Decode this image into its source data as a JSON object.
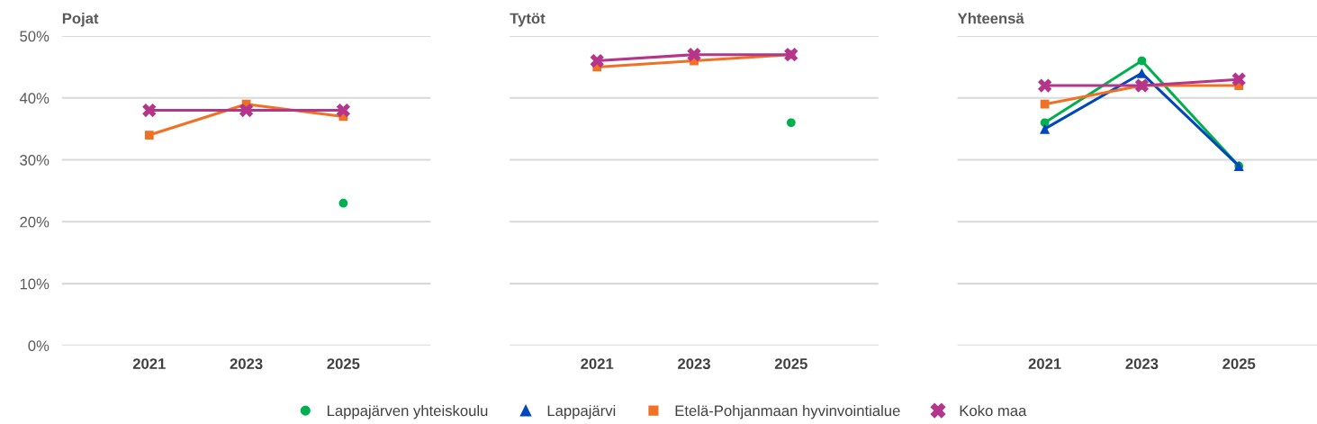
{
  "chart_data": [
    {
      "type": "line",
      "title": "Pojat",
      "categories": [
        "2021",
        "2023",
        "2025"
      ],
      "ylim": [
        0,
        50
      ],
      "yticks": [
        {
          "value": 0,
          "label": "0%"
        },
        {
          "value": 10,
          "label": "10%"
        },
        {
          "value": 20,
          "label": "20%"
        },
        {
          "value": 30,
          "label": "30%"
        },
        {
          "value": 40,
          "label": "40%"
        },
        {
          "value": 50,
          "label": "50%"
        }
      ],
      "grid": "y",
      "legend": "bottom",
      "series": [
        {
          "name": "Lappajärven yhteiskoulu",
          "color": "#00b050",
          "marker": "circle",
          "values": [
            null,
            null,
            23
          ]
        },
        {
          "name": "Lappajärvi",
          "color": "#0047bb",
          "marker": "triangle",
          "values": [
            null,
            null,
            null
          ]
        },
        {
          "name": "Etelä-Pohjanmaan hyvinvointialue",
          "color": "#f07024",
          "marker": "square",
          "values": [
            34,
            39,
            37
          ]
        },
        {
          "name": "Koko maa",
          "color": "#b5358a",
          "marker": "cross",
          "values": [
            38,
            38,
            38
          ]
        }
      ]
    },
    {
      "type": "line",
      "title": "Tytöt",
      "categories": [
        "2021",
        "2023",
        "2025"
      ],
      "ylim": [
        0,
        50
      ],
      "yticks": [
        {
          "value": 0,
          "label": null
        },
        {
          "value": 10,
          "label": null
        },
        {
          "value": 20,
          "label": null
        },
        {
          "value": 30,
          "label": null
        },
        {
          "value": 40,
          "label": null
        },
        {
          "value": 50,
          "label": null
        }
      ],
      "grid": "y",
      "tick_labels": "x",
      "series": [
        {
          "color": "#00b050",
          "marker": "circle",
          "values": [
            null,
            null,
            36
          ]
        },
        {
          "color": "#f07024",
          "marker": "square",
          "values": [
            45,
            46,
            47
          ]
        },
        {
          "color": "#b5358a",
          "marker": "cross",
          "values": [
            46,
            47,
            47
          ]
        }
      ]
    },
    {
      "type": "line",
      "title": "Yhteensä",
      "categories": [
        "2021",
        "2023",
        "2025"
      ],
      "ylim": [
        0,
        50
      ],
      "yticks": [
        {
          "value": 0,
          "label": null
        },
        {
          "value": 10,
          "label": null
        },
        {
          "value": 20,
          "label": null
        },
        {
          "value": 30,
          "label": null
        },
        {
          "value": 40,
          "label": null
        },
        {
          "value": 50,
          "label": null
        }
      ],
      "grid": "y",
      "tick_labels": "x",
      "series": [
        {
          "color": "#00b050",
          "marker": "circle",
          "values": [
            36,
            46,
            29
          ]
        },
        {
          "color": "#0047bb",
          "marker": "triangle",
          "values": [
            35,
            44,
            29
          ]
        },
        {
          "color": "#f07024",
          "marker": "square",
          "values": [
            39,
            42,
            42
          ]
        },
        {
          "color": "#b5358a",
          "marker": "cross",
          "values": [
            42,
            42,
            43
          ]
        }
      ]
    }
  ]
}
